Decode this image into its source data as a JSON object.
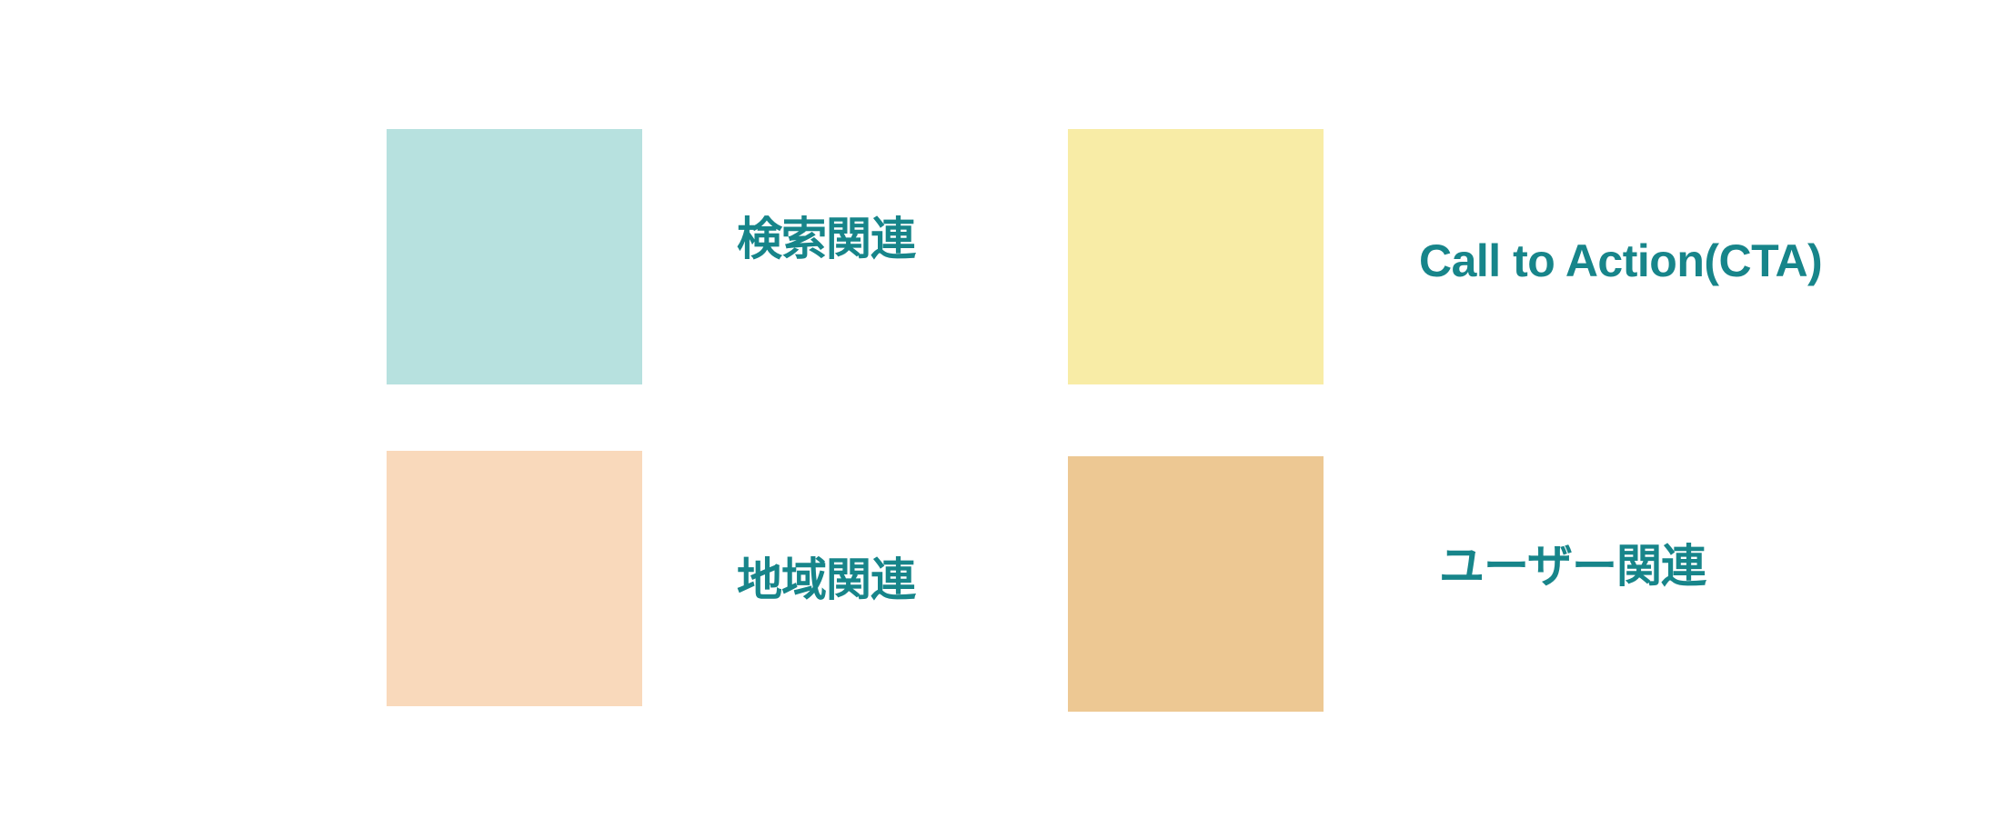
{
  "legend": {
    "items": [
      {
        "label": "検索関連",
        "color": "#b7e1df"
      },
      {
        "label": "Call to Action(CTA)",
        "color": "#f8eca6"
      },
      {
        "label": "地域関連",
        "color": "#f9d9bb"
      },
      {
        "label": "ユーザー関連",
        "color": "#edc893"
      }
    ],
    "label_color": "#17858a"
  }
}
